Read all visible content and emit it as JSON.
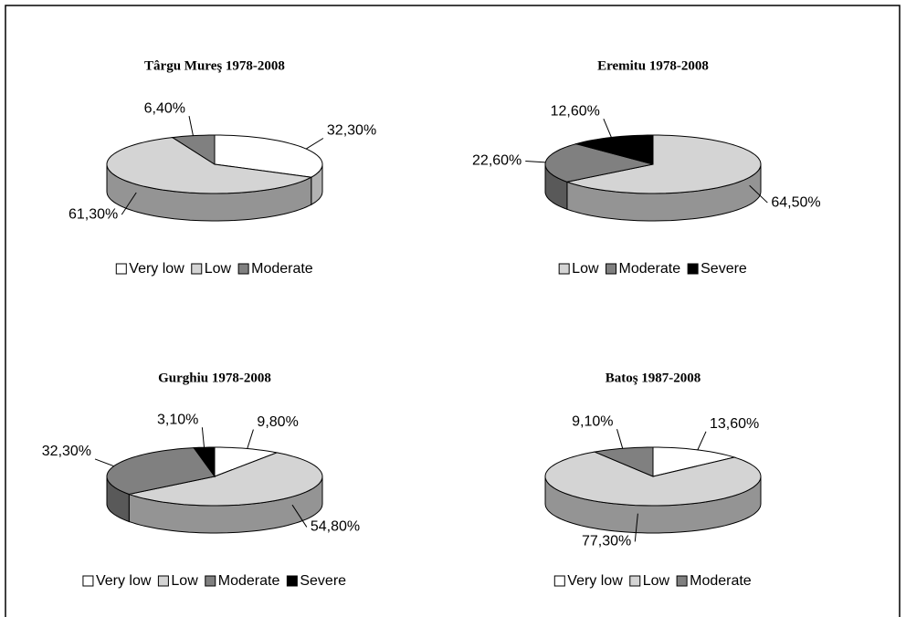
{
  "chart_data": [
    {
      "type": "pie",
      "title": "Târgu Mureş 1978-2008",
      "categories": [
        "Very low",
        "Low",
        "Moderate"
      ],
      "values": [
        32.3,
        61.3,
        6.4
      ],
      "value_labels": [
        "32,30%",
        "61,30%",
        "6,40%"
      ],
      "colors": [
        "#ffffff",
        "#d4d4d4",
        "#808080"
      ]
    },
    {
      "type": "pie",
      "title": "Eremitu 1978-2008",
      "categories": [
        "Low",
        "Moderate",
        "Severe"
      ],
      "values": [
        64.5,
        22.6,
        12.6
      ],
      "value_labels": [
        "64,50%",
        "22,60%",
        "12,60%"
      ],
      "colors": [
        "#d4d4d4",
        "#808080",
        "#000000"
      ]
    },
    {
      "type": "pie",
      "title": "Gurghiu 1978-2008",
      "categories": [
        "Very low",
        "Low",
        "Moderate",
        "Severe"
      ],
      "values": [
        9.8,
        54.8,
        32.3,
        3.1
      ],
      "value_labels": [
        "9,80%",
        "54,80%",
        "32,30%",
        "3,10%"
      ],
      "colors": [
        "#ffffff",
        "#d4d4d4",
        "#808080",
        "#000000"
      ]
    },
    {
      "type": "pie",
      "title": "Batoş 1987-2008",
      "categories": [
        "Very low",
        "Low",
        "Moderate"
      ],
      "values": [
        13.6,
        77.3,
        9.1
      ],
      "value_labels": [
        "13,60%",
        "77,30%",
        "9,10%"
      ],
      "colors": [
        "#ffffff",
        "#d4d4d4",
        "#808080"
      ]
    }
  ]
}
